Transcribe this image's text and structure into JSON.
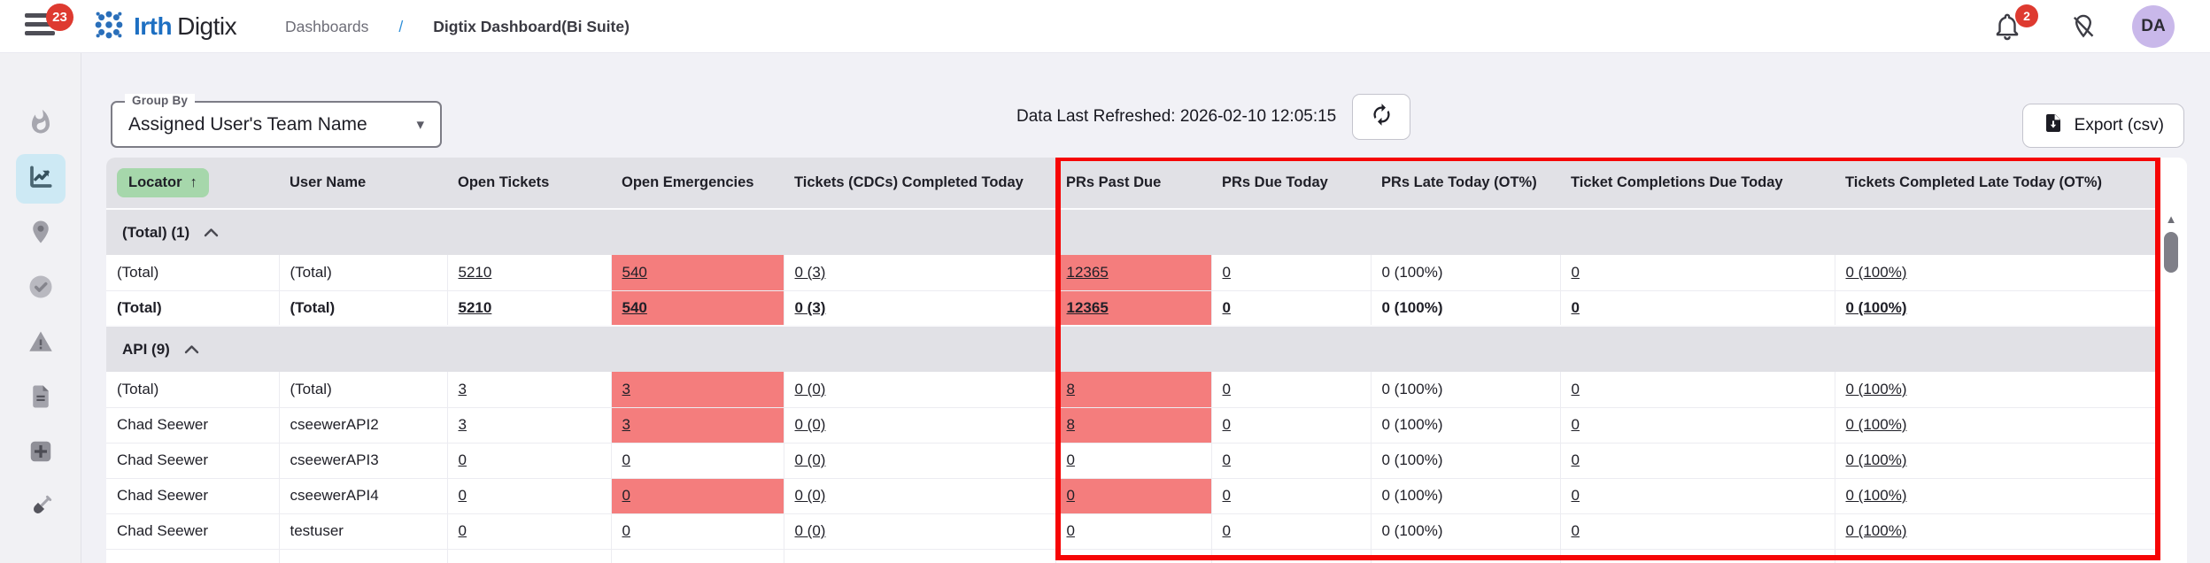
{
  "topbar": {
    "menu_badge": "23",
    "brand_bold": "Irth",
    "brand_rest": "Digtix",
    "breadcrumb": {
      "section": "Dashboards",
      "separator": "/",
      "current": "Digtix Dashboard(Bi Suite)"
    },
    "notifications_badge": "2",
    "avatar_initials": "DA"
  },
  "sidebar": {
    "items": [
      {
        "icon": "flame-icon",
        "active": false
      },
      {
        "icon": "analytics-icon",
        "active": true
      },
      {
        "icon": "location-pin-icon",
        "active": false
      },
      {
        "icon": "check-circle-icon",
        "active": false
      },
      {
        "icon": "warning-triangle-icon",
        "active": false
      },
      {
        "icon": "document-icon",
        "active": false
      },
      {
        "icon": "plus-square-icon",
        "active": false
      },
      {
        "icon": "shovel-icon",
        "active": false
      }
    ]
  },
  "toolbar": {
    "group_by": {
      "label": "Group By",
      "value": "Assigned User's Team Name"
    },
    "refresh_text": "Data Last Refreshed: 2026-02-10 12:05:15",
    "export_label": "Export (csv)"
  },
  "table": {
    "columns": [
      {
        "label": "Locator",
        "sorted": true
      },
      {
        "label": "User Name",
        "sorted": false
      },
      {
        "label": "Open Tickets",
        "sorted": false
      },
      {
        "label": "Open Emergencies",
        "sorted": false
      },
      {
        "label": "Tickets (CDCs) Completed Today",
        "sorted": false
      },
      {
        "label": "PRs Past Due",
        "sorted": false
      },
      {
        "label": "PRs Due Today",
        "sorted": false
      },
      {
        "label": "PRs Late Today (OT%)",
        "sorted": false
      },
      {
        "label": "Ticket Completions Due Today",
        "sorted": false
      },
      {
        "label": "Tickets Completed Late Today (OT%)",
        "sorted": false
      }
    ],
    "sort": {
      "column": "Locator",
      "direction": "asc",
      "arrow": "↑"
    },
    "link_columns": [
      2,
      3,
      4,
      5,
      6,
      8,
      9
    ],
    "groups": [
      {
        "label": "(Total) (1)",
        "rows": [
          {
            "cells": [
              "(Total)",
              "(Total)",
              "5210",
              "540",
              "0 (3)",
              "12365",
              "0",
              "0 (100%)",
              "0",
              "0 (100%)"
            ],
            "red_cells": [
              3,
              5
            ],
            "bold": false
          },
          {
            "cells": [
              "(Total)",
              "(Total)",
              "5210",
              "540",
              "0 (3)",
              "12365",
              "0",
              "0 (100%)",
              "0",
              "0 (100%)"
            ],
            "red_cells": [
              3,
              5
            ],
            "bold": true
          }
        ]
      },
      {
        "label": "API (9)",
        "rows": [
          {
            "cells": [
              "(Total)",
              "(Total)",
              "3",
              "3",
              "0 (0)",
              "8",
              "0",
              "0 (100%)",
              "0",
              "0 (100%)"
            ],
            "red_cells": [
              3,
              5
            ],
            "bold": false
          },
          {
            "cells": [
              "Chad Seewer",
              "cseewerAPI2",
              "3",
              "3",
              "0 (0)",
              "8",
              "0",
              "0 (100%)",
              "0",
              "0 (100%)"
            ],
            "red_cells": [
              3,
              5
            ],
            "bold": false
          },
          {
            "cells": [
              "Chad Seewer",
              "cseewerAPI3",
              "0",
              "0",
              "0 (0)",
              "0",
              "0",
              "0 (100%)",
              "0",
              "0 (100%)"
            ],
            "red_cells": [],
            "bold": false
          },
          {
            "cells": [
              "Chad Seewer",
              "cseewerAPI4",
              "0",
              "0",
              "0 (0)",
              "0",
              "0",
              "0 (100%)",
              "0",
              "0 (100%)"
            ],
            "red_cells": [
              3,
              5
            ],
            "bold": false
          },
          {
            "cells": [
              "Chad Seewer",
              "testuser",
              "0",
              "0",
              "0 (0)",
              "0",
              "0",
              "0 (100%)",
              "0",
              "0 (100%)"
            ],
            "red_cells": [],
            "bold": false
          }
        ]
      }
    ]
  },
  "colors": {
    "brand_blue": "#1d6fc2",
    "badge_red": "#de3a30",
    "red_cell_bg": "#f47d7d",
    "annotation_red": "#f60505",
    "sorted_pill_green": "#a6d7ab",
    "active_sidebar_bg": "#cde9f4",
    "header_gray": "#e1e1e6"
  }
}
